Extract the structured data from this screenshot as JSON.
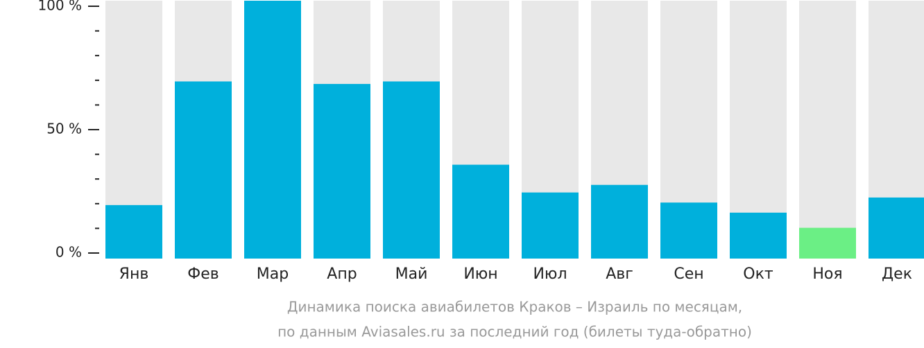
{
  "chart_data": {
    "type": "bar",
    "title": "Динамика поиска авиабилетов Краков – Израиль по месяцам,",
    "subtitle": "по данным Aviasales.ru за последний год (билеты туда-обратно)",
    "categories": [
      "Янв",
      "Фев",
      "Мар",
      "Апр",
      "Май",
      "Июн",
      "Июл",
      "Авг",
      "Сен",
      "Окт",
      "Ноя",
      "Дек"
    ],
    "values": [
      19,
      68,
      100,
      67,
      68,
      35,
      24,
      27,
      20,
      16,
      10,
      22
    ],
    "color": "#00b0dc",
    "highlight_color": "#6bef85",
    "highlight_index": 10,
    "background_color": "#e8e8e8",
    "ylim": [
      0,
      100
    ],
    "yticks": [
      {
        "value": 0,
        "label": "0 %"
      },
      {
        "value": 50,
        "label": "50 %"
      },
      {
        "value": 100,
        "label": "100 %"
      }
    ],
    "minor_yticks": [
      10,
      20,
      30,
      40,
      60,
      70,
      80,
      90
    ]
  }
}
